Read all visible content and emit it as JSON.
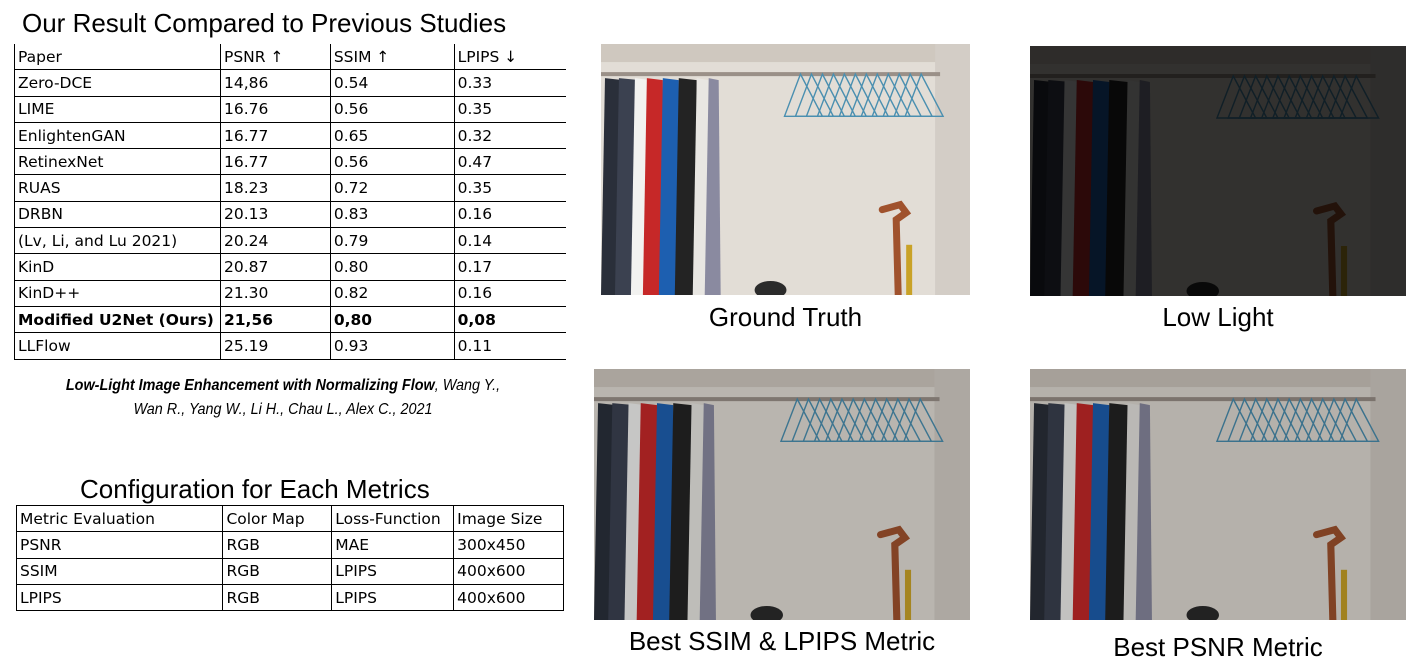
{
  "results_section": {
    "title": "Our Result Compared to Previous Studies",
    "headers": [
      "Paper",
      "PSNR ↑",
      "SSIM ↑",
      "LPIPS ↓"
    ],
    "rows": [
      [
        "Zero-DCE",
        "14,86",
        "0.54",
        "0.33"
      ],
      [
        "LIME",
        "16.76",
        "0.56",
        "0.35"
      ],
      [
        "EnlightenGAN",
        "16.77",
        "0.65",
        "0.32"
      ],
      [
        "RetinexNet",
        "16.77",
        "0.56",
        "0.47"
      ],
      [
        "RUAS",
        "18.23",
        "0.72",
        "0.35"
      ],
      [
        "DRBN",
        "20.13",
        "0.83",
        "0.16"
      ],
      [
        "(Lv, Li, and Lu 2021)",
        "20.24",
        "0.79",
        "0.14"
      ],
      [
        "KinD",
        "20.87",
        "0.80",
        "0.17"
      ],
      [
        "KinD++",
        "21.30",
        "0.82",
        "0.16"
      ],
      [
        "Modified U2Net (Ours)",
        "21,56",
        "0,80",
        "0,08"
      ],
      [
        "LLFlow",
        "25.19",
        "0.93",
        "0.11"
      ]
    ],
    "bold_row_index": 9
  },
  "citation": {
    "title": "Low-Light Image Enhancement with Normalizing Flow",
    "authors_line1": ", Wang Y.,",
    "authors_line2": "Wan R., Yang W., Li H., Chau L., Alex C., 2021"
  },
  "config_section": {
    "title": "Configuration for Each Metrics",
    "headers": [
      "Metric Evaluation",
      "Color Map",
      "Loss-Function",
      "Image Size"
    ],
    "rows": [
      [
        "PSNR",
        "RGB",
        "MAE",
        "300x450"
      ],
      [
        "SSIM",
        "RGB",
        "LPIPS",
        "400x600"
      ],
      [
        "LPIPS",
        "RGB",
        "LPIPS",
        "400x600"
      ]
    ]
  },
  "images": [
    {
      "caption": "Ground Truth",
      "brightness": 1.0
    },
    {
      "caption": "Low Light",
      "brightness": 0.22
    },
    {
      "caption": "Best SSIM & LPIPS Metric",
      "brightness": 0.82
    },
    {
      "caption": "Best PSNR Metric",
      "brightness": 0.8
    }
  ]
}
